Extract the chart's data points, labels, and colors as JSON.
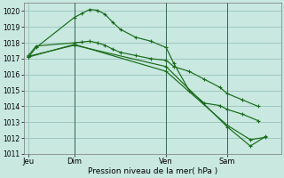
{
  "background_color": "#c8e8e0",
  "grid_color": "#a0c8c0",
  "line_color": "#1a6b1a",
  "xlabel": "Pression niveau de la mer( hPa )",
  "ylim": [
    1011,
    1020.5
  ],
  "yticks": [
    1011,
    1012,
    1013,
    1014,
    1015,
    1016,
    1017,
    1018,
    1019,
    1020
  ],
  "xtick_labels": [
    "Jeu",
    "Dim",
    "Ven",
    "Sam"
  ],
  "xtick_positions": [
    0,
    3,
    9,
    13
  ],
  "xlim": [
    -0.3,
    16.5
  ],
  "vlines": [
    3,
    9,
    13
  ],
  "series": [
    {
      "x": [
        0,
        0.5,
        3.0,
        3.5,
        4.0,
        4.5,
        5.0,
        5.5,
        6.0,
        7.0,
        8.0,
        9.0,
        9.5,
        10.5,
        11.5,
        12.5,
        13.0,
        14.0,
        15.0
      ],
      "y": [
        1017.1,
        1017.7,
        1019.6,
        1019.85,
        1020.1,
        1020.05,
        1019.8,
        1019.3,
        1018.85,
        1018.35,
        1018.1,
        1017.7,
        1016.7,
        1015.0,
        1014.2,
        1014.05,
        1013.8,
        1013.5,
        1013.1
      ]
    },
    {
      "x": [
        0,
        0.5,
        3.0,
        3.5,
        4.0,
        4.5,
        5.0,
        5.5,
        6.0,
        7.0,
        8.0,
        9.0,
        9.5,
        10.5,
        11.5,
        12.5,
        13.0,
        14.0,
        15.0
      ],
      "y": [
        1017.2,
        1017.8,
        1018.0,
        1018.05,
        1018.1,
        1018.0,
        1017.85,
        1017.6,
        1017.4,
        1017.2,
        1017.0,
        1016.9,
        1016.5,
        1016.2,
        1015.7,
        1015.2,
        1014.8,
        1014.4,
        1014.0
      ]
    },
    {
      "x": [
        0,
        3.0,
        9.0,
        13.0,
        14.5,
        15.5
      ],
      "y": [
        1017.15,
        1017.85,
        1016.5,
        1012.7,
        1011.5,
        1012.1
      ]
    },
    {
      "x": [
        0,
        3.0,
        9.0,
        13.0,
        14.5,
        15.5
      ],
      "y": [
        1017.1,
        1017.9,
        1016.2,
        1012.8,
        1011.9,
        1012.05
      ]
    }
  ]
}
